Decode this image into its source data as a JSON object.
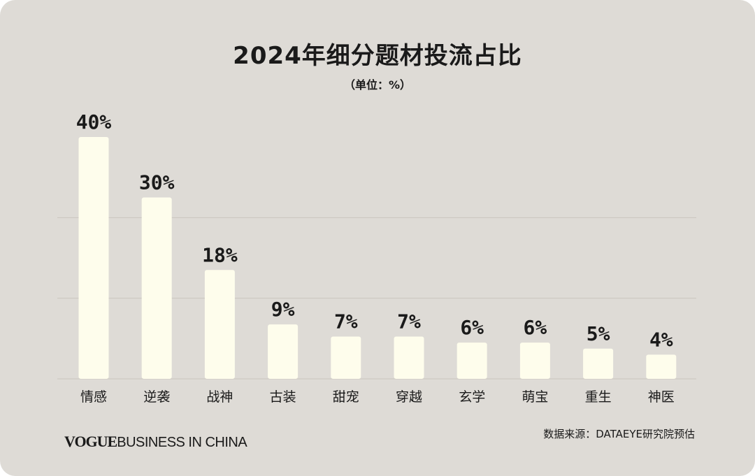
{
  "chart_data": {
    "type": "bar",
    "title": "2024年细分题材投流占比",
    "subtitle": "（单位：%）",
    "categories": [
      "情感",
      "逆袭",
      "战神",
      "古装",
      "甜宠",
      "穿越",
      "玄学",
      "萌宝",
      "重生",
      "神医"
    ],
    "values": [
      40,
      30,
      18,
      9,
      7,
      7,
      6,
      6,
      5,
      4
    ],
    "data_labels": [
      "40%",
      "30%",
      "18%",
      "9%",
      "7%",
      "7%",
      "6%",
      "6%",
      "5%",
      "4%"
    ],
    "ylim": [
      0,
      40
    ],
    "grid": true,
    "legend": "none"
  },
  "footer": {
    "brand_vogue": "VOGUE",
    "brand_rest": "BUSINESS IN CHINA",
    "source": "数据来源：DATAEYE研究院预估"
  },
  "colors": {
    "background": "#dedbd6",
    "bar": "#fefdec",
    "text": "#1a1a1a",
    "gridline": "#c9c5bf"
  }
}
